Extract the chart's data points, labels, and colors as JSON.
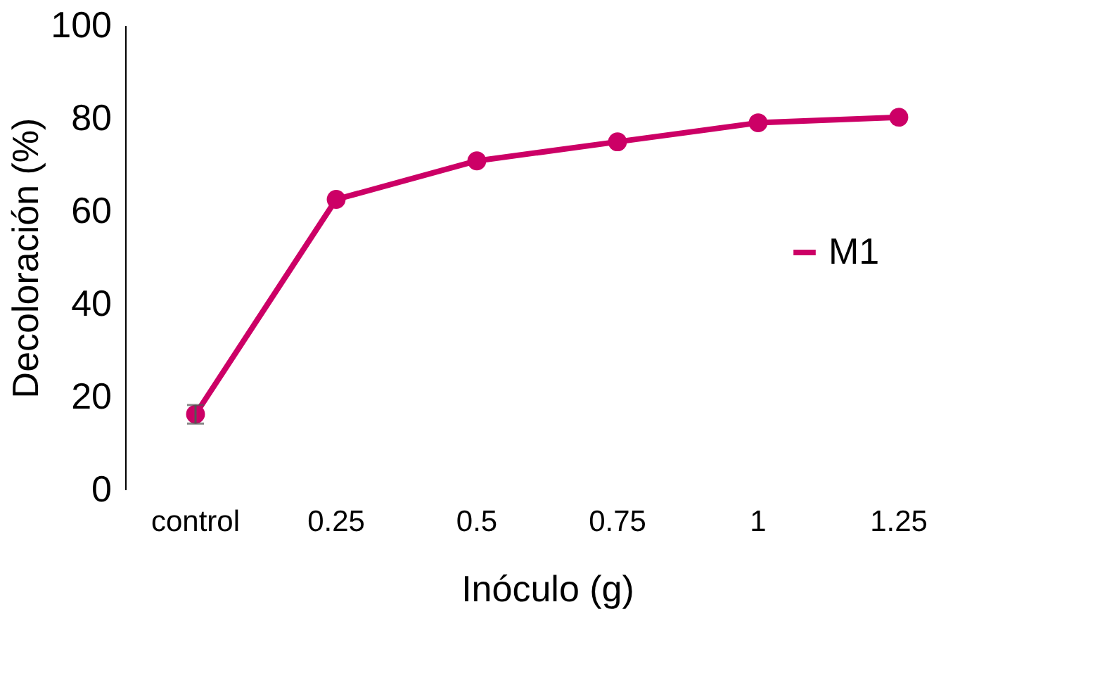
{
  "chart_data": {
    "type": "line",
    "xlabel": "Inóculo (g)",
    "ylabel": "Decoloración (%)",
    "categories": [
      "control",
      "0.25",
      "0.5",
      "0.75",
      "1",
      "1.25"
    ],
    "series": [
      {
        "name": "M1",
        "color": "#cc0066",
        "values": [
          16.2,
          62.5,
          70.8,
          74.9,
          79.0,
          80.2
        ],
        "errors": [
          2,
          null,
          null,
          null,
          null,
          null
        ]
      }
    ],
    "ylim": [
      0,
      100
    ],
    "yticks": [
      0,
      20,
      40,
      60,
      80,
      100
    ],
    "grid": false,
    "legend": "right",
    "marker": "circle",
    "line_style": "solid"
  }
}
